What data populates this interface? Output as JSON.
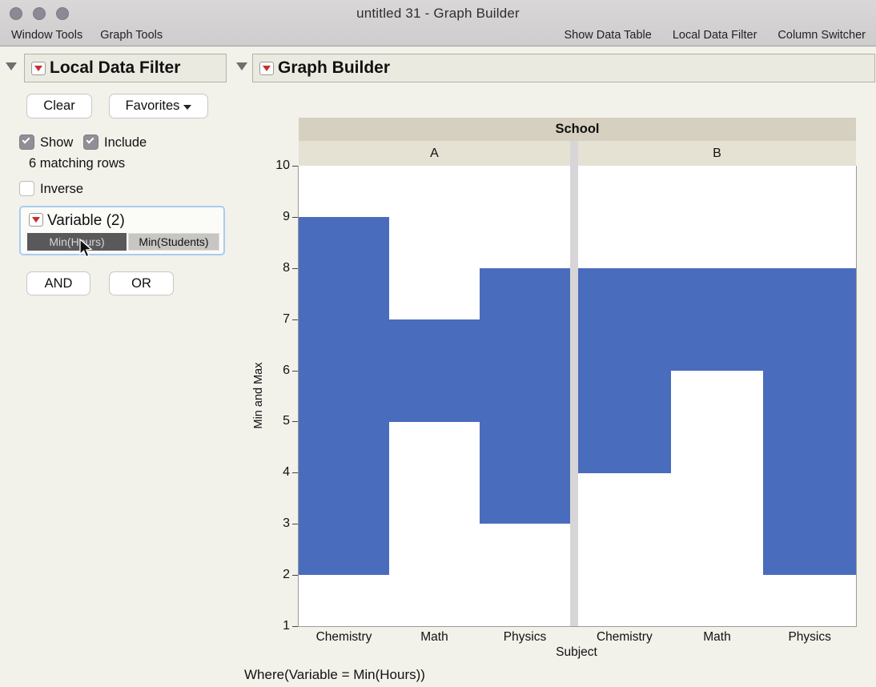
{
  "window": {
    "title": "untitled 31 - Graph Builder"
  },
  "menubar": {
    "left": [
      "Window Tools",
      "Graph Tools"
    ],
    "right": [
      "Show Data Table",
      "Local Data Filter",
      "Column Switcher"
    ]
  },
  "local_data_filter": {
    "title": "Local Data Filter",
    "clear_label": "Clear",
    "favorites_label": "Favorites",
    "show_label": "Show",
    "include_label": "Include",
    "show_checked": true,
    "include_checked": true,
    "matching_rows": "6 matching rows",
    "inverse_label": "Inverse",
    "inverse_checked": false,
    "variable_title": "Variable (2)",
    "variables": [
      {
        "label": "Min(Hours)",
        "selected": true
      },
      {
        "label": "Min(Students)",
        "selected": false
      }
    ],
    "and_label": "AND",
    "or_label": "OR"
  },
  "graph_builder": {
    "title": "Graph Builder",
    "where_clause": "Where(Variable = Min(Hours))"
  },
  "chart_data": {
    "type": "bar",
    "subtype": "range-interval-grouped",
    "panel_variable": "School",
    "panels": [
      "A",
      "B"
    ],
    "categories": [
      "Chemistry",
      "Math",
      "Physics"
    ],
    "series": [
      {
        "name": "School A",
        "panel": "A",
        "ranges": [
          {
            "category": "Chemistry",
            "min": 2,
            "max": 9
          },
          {
            "category": "Math",
            "min": 5,
            "max": 7
          },
          {
            "category": "Physics",
            "min": 3,
            "max": 8
          }
        ]
      },
      {
        "name": "School B",
        "panel": "B",
        "ranges": [
          {
            "category": "Chemistry",
            "min": 4,
            "max": 8
          },
          {
            "category": "Math",
            "min": 6,
            "max": 8
          },
          {
            "category": "Physics",
            "min": 2,
            "max": 8
          }
        ]
      }
    ],
    "xlabel": "Subject",
    "ylabel": "Min and Max",
    "ylim": [
      1,
      10
    ],
    "yticks": [
      1,
      2,
      3,
      4,
      5,
      6,
      7,
      8,
      9,
      10
    ],
    "grid": false,
    "legend": "none",
    "bar_color": "#4a6cbd"
  },
  "colors": {
    "accent": "#4a6cbd",
    "band_tan": "#d5d0bf",
    "band_light": "#e5e2d4",
    "chip_dark": "#59585a",
    "chip_light": "#c8c6c3",
    "variable_border": "#a9ccf1",
    "red_triangle": "#c62f2f"
  }
}
